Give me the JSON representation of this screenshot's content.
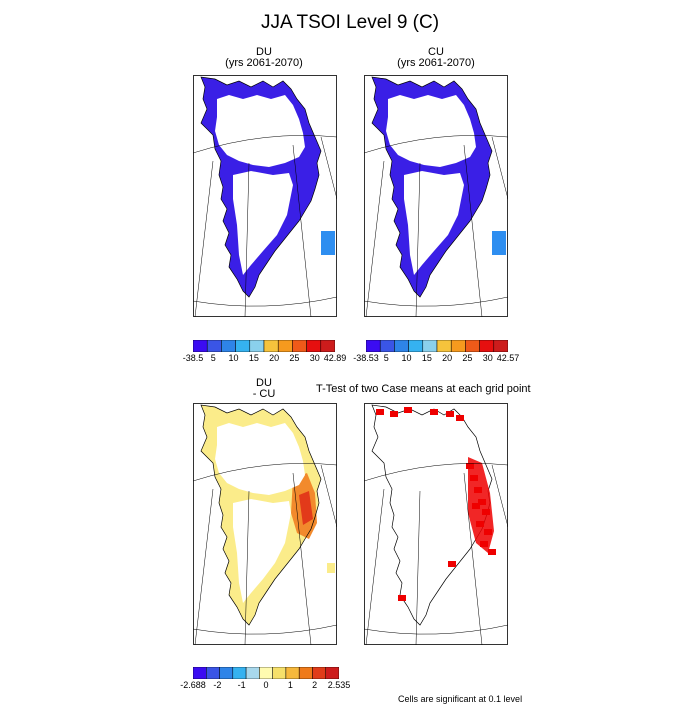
{
  "title": "JJA TSOI Level 9 (C)",
  "panels": {
    "du": {
      "title": "DU",
      "subtitle": "(yrs 2061-2070)"
    },
    "cu": {
      "title": "CU",
      "subtitle": "(yrs 2061-2070)"
    },
    "diff": {
      "title": "DU",
      "subtitle": "- CU"
    },
    "ttest": {
      "title": "T-Test of two Case means at each grid point"
    }
  },
  "colorbars": {
    "du": {
      "colors": [
        "#3b0cf2",
        "#3a55e6",
        "#2e84e8",
        "#35b2f0",
        "#8ad0ec",
        "#f6c33c",
        "#f69a1e",
        "#ef5a19",
        "#e60f0f",
        "#cd1c1c"
      ],
      "labels": [
        "-38.5",
        "5",
        "10",
        "15",
        "20",
        "25",
        "30",
        "42.89"
      ]
    },
    "cu": {
      "colors": [
        "#3b0cf2",
        "#3a55e6",
        "#2e84e8",
        "#35b2f0",
        "#8ad0ec",
        "#f6c33c",
        "#f69a1e",
        "#ef5a19",
        "#e60f0f",
        "#cd1c1c"
      ],
      "labels": [
        "-38.53",
        "5",
        "10",
        "15",
        "20",
        "25",
        "30",
        "42.57"
      ]
    },
    "diff": {
      "colors": [
        "#3b0cf2",
        "#3a55e6",
        "#2e84e8",
        "#35b2f0",
        "#a8d8ec",
        "#fffbb0",
        "#f6e06a",
        "#f6b83c",
        "#ef7a19",
        "#e03c19",
        "#cd1c1c"
      ],
      "labels": [
        "-2.688",
        "-2",
        "-1",
        "0",
        "1",
        "2",
        "2.535"
      ]
    }
  },
  "footer": "Cells are significant at 0.1 level"
}
